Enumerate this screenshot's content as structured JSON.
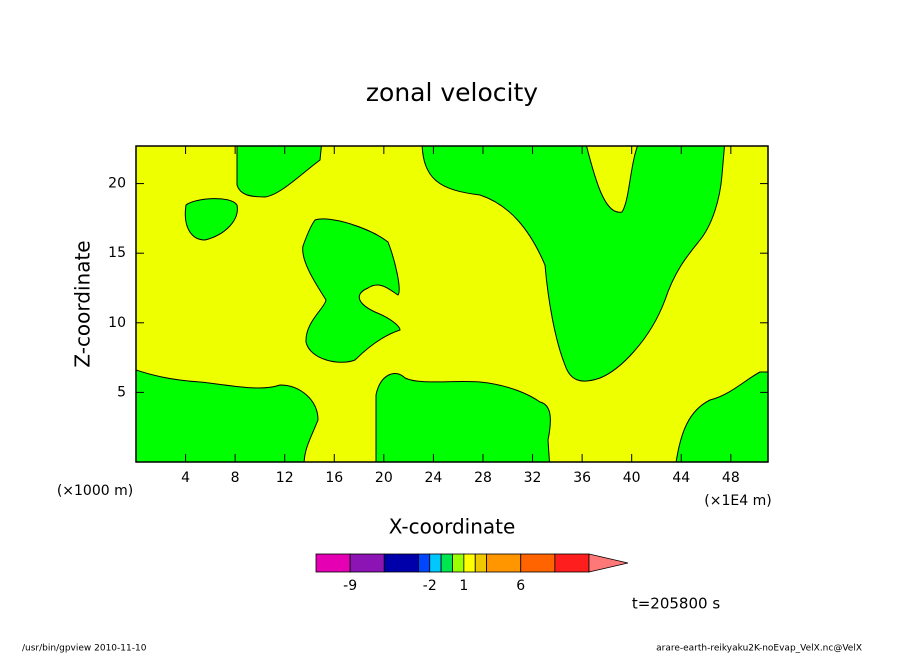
{
  "chart_data": {
    "type": "contour",
    "title": "zonal velocity",
    "xlabel": "X-coordinate",
    "ylabel": "Z-coordinate",
    "xunit": "(×1000 m)",
    "xunit2": "(×1E4 m)",
    "time_label": "t=205800 s",
    "footer_left": "/usr/bin/gpview   2010-11-10",
    "footer_right": "arare-earth-reikyaku2K-noEvap_VelX.nc@VelX",
    "xlim": [
      0,
      51
    ],
    "xticks": [
      4,
      8,
      12,
      16,
      20,
      24,
      28,
      32,
      36,
      40,
      44,
      48
    ],
    "ylim": [
      0,
      22.7
    ],
    "yticks": [
      5,
      10,
      15,
      20
    ],
    "colorbar": {
      "levels": [
        -12,
        -9,
        -6,
        -3,
        -2,
        -1,
        0,
        1,
        2,
        3,
        6,
        9,
        12
      ],
      "colors": [
        "#e600b4",
        "#8c14b4",
        "#0000aa",
        "#0046ff",
        "#00c8ff",
        "#00e650",
        "#9bff00",
        "#ffff00",
        "#f0c800",
        "#ff9600",
        "#ff6400",
        "#ff1e1e",
        "#ff7878",
        "#ffb4b4"
      ],
      "ticks": [
        -9,
        -2,
        1,
        6
      ]
    }
  }
}
